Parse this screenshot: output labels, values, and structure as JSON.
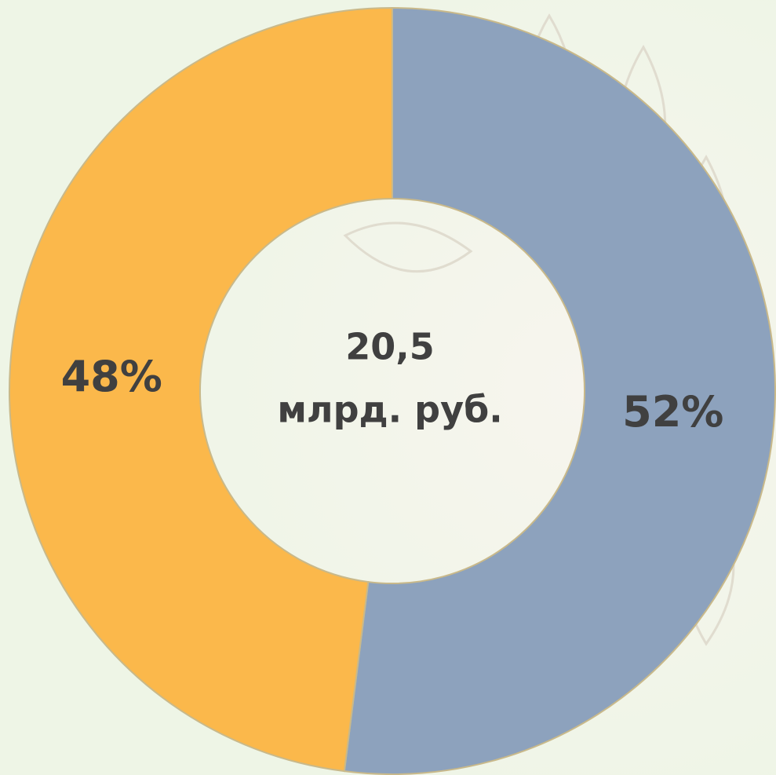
{
  "chart_data": {
    "type": "donut",
    "values": [
      52,
      48
    ],
    "value_labels": [
      "52%",
      "48%"
    ],
    "colors": [
      "#8da2bd",
      "#fbb84b"
    ],
    "start_angle": 0,
    "direction": "clockwise",
    "center_text": [
      "20,5",
      "млрд. руб."
    ]
  }
}
